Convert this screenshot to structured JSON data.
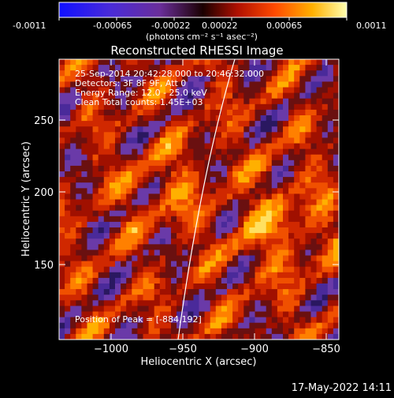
{
  "colorbar": {
    "tick_labels": [
      "-0.0011",
      "-0.00065",
      "-0.00022",
      "0.00022",
      "0.00065",
      "0.0011"
    ],
    "units_label": "(photons cm⁻² s⁻¹ asec⁻²)",
    "min": -0.0011,
    "max": 0.0011
  },
  "plot": {
    "title": "Reconstructed RHESSI Image",
    "x_axis_label": "Heliocentric X (arcsec)",
    "y_axis_label": "Heliocentric Y (arcsec)",
    "x_ticks": [
      "−1000",
      "−950",
      "−900",
      "−850"
    ],
    "y_ticks": [
      "250",
      "200",
      "150"
    ],
    "xlim": [
      -1035,
      -840
    ],
    "ylim": [
      105,
      282
    ]
  },
  "annotations": {
    "time_range": "25-Sep-2014 20:42:28.000 to 20:46:32.000",
    "detectors": "Detectors: 3F 8F 9F, Att 0",
    "energy_range": "Energy Range: 12.0 - 25.0 keV",
    "clean_counts": "Clean    Total counts: 1.45E+03",
    "peak_position": "Position of Peak = [-884,192]"
  },
  "footer": {
    "date_stamp": "17-May-2022 14:11"
  }
}
